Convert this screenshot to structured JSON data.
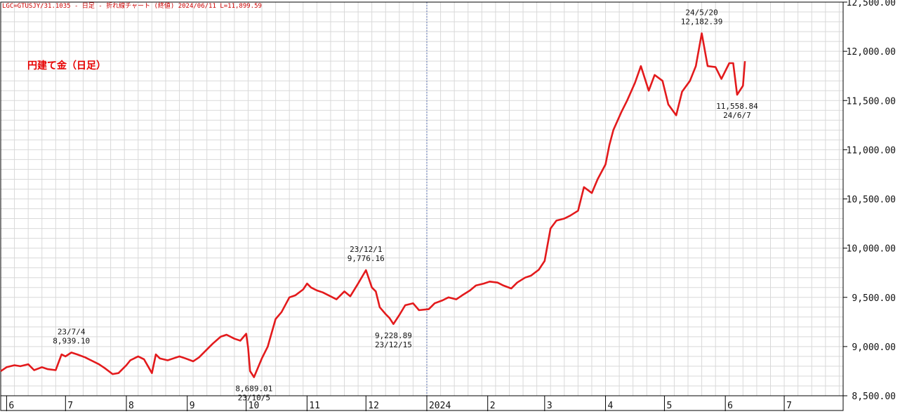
{
  "header": {
    "symbol": "LGC=GTUSJY/31.1035",
    "period": "日足",
    "chart_kind": "折れ線チャート",
    "price_type": "(終値)",
    "date": "2024/06/11",
    "last": "L=11,899.59"
  },
  "legend_label": "円建て金（日足）",
  "colors": {
    "line": "#e31a1c",
    "grid": "#d9d9d9",
    "frame": "#000000",
    "label": "#e60000",
    "text": "#111111"
  },
  "chart_data": {
    "type": "line",
    "title": "",
    "xlabel": "",
    "ylabel": "",
    "ylim": [
      8500,
      12500
    ],
    "y_ticks": [
      "8,500.00",
      "9,000.00",
      "9,500.00",
      "10,000.00",
      "10,500.00",
      "11,000.00",
      "11,500.00",
      "12,000.00",
      "12,500.00"
    ],
    "x_ticks": [
      {
        "label": "6",
        "date": "2023-06-01"
      },
      {
        "label": "7",
        "date": "2023-07-01"
      },
      {
        "label": "8",
        "date": "2023-08-01"
      },
      {
        "label": "9",
        "date": "2023-09-01"
      },
      {
        "label": "10",
        "date": "2023-10-01"
      },
      {
        "label": "11",
        "date": "2023-11-01"
      },
      {
        "label": "12",
        "date": "2023-12-01"
      },
      {
        "label": "2024",
        "date": "2024-01-01"
      },
      {
        "label": "2",
        "date": "2024-02-01"
      },
      {
        "label": "3",
        "date": "2024-03-01"
      },
      {
        "label": "4",
        "date": "2024-04-01"
      },
      {
        "label": "5",
        "date": "2024-05-01"
      },
      {
        "label": "6",
        "date": "2024-06-01"
      },
      {
        "label": "7",
        "date": "2024-07-01"
      }
    ],
    "x_range": [
      "2023-05-29",
      "2024-07-31"
    ],
    "series": [
      {
        "points": [
          [
            "2023-05-29",
            8750
          ],
          [
            "2023-06-01",
            8790
          ],
          [
            "2023-06-05",
            8810
          ],
          [
            "2023-06-08",
            8800
          ],
          [
            "2023-06-12",
            8820
          ],
          [
            "2023-06-15",
            8760
          ],
          [
            "2023-06-19",
            8790
          ],
          [
            "2023-06-22",
            8770
          ],
          [
            "2023-06-26",
            8760
          ],
          [
            "2023-06-29",
            8920
          ],
          [
            "2023-07-01",
            8900
          ],
          [
            "2023-07-04",
            8939.1
          ],
          [
            "2023-07-07",
            8920
          ],
          [
            "2023-07-11",
            8890
          ],
          [
            "2023-07-14",
            8860
          ],
          [
            "2023-07-18",
            8820
          ],
          [
            "2023-07-21",
            8780
          ],
          [
            "2023-07-25",
            8720
          ],
          [
            "2023-07-28",
            8730
          ],
          [
            "2023-08-01",
            8810
          ],
          [
            "2023-08-03",
            8860
          ],
          [
            "2023-08-07",
            8900
          ],
          [
            "2023-08-10",
            8870
          ],
          [
            "2023-08-14",
            8730
          ],
          [
            "2023-08-16",
            8920
          ],
          [
            "2023-08-18",
            8880
          ],
          [
            "2023-08-22",
            8860
          ],
          [
            "2023-08-25",
            8880
          ],
          [
            "2023-08-28",
            8900
          ],
          [
            "2023-08-31",
            8880
          ],
          [
            "2023-09-04",
            8850
          ],
          [
            "2023-09-07",
            8890
          ],
          [
            "2023-09-11",
            8970
          ],
          [
            "2023-09-14",
            9030
          ],
          [
            "2023-09-18",
            9100
          ],
          [
            "2023-09-21",
            9120
          ],
          [
            "2023-09-25",
            9080
          ],
          [
            "2023-09-28",
            9060
          ],
          [
            "2023-10-01",
            9130
          ],
          [
            "2023-10-02",
            8990
          ],
          [
            "2023-10-03",
            8750
          ],
          [
            "2023-10-04",
            8720
          ],
          [
            "2023-10-05",
            8689.01
          ],
          [
            "2023-10-09",
            8880
          ],
          [
            "2023-10-12",
            9000
          ],
          [
            "2023-10-16",
            9280
          ],
          [
            "2023-10-19",
            9350
          ],
          [
            "2023-10-23",
            9500
          ],
          [
            "2023-10-26",
            9520
          ],
          [
            "2023-10-30",
            9580
          ],
          [
            "2023-11-01",
            9640
          ],
          [
            "2023-11-03",
            9600
          ],
          [
            "2023-11-06",
            9570
          ],
          [
            "2023-11-09",
            9550
          ],
          [
            "2023-11-13",
            9510
          ],
          [
            "2023-11-16",
            9480
          ],
          [
            "2023-11-20",
            9560
          ],
          [
            "2023-11-23",
            9510
          ],
          [
            "2023-11-27",
            9640
          ],
          [
            "2023-12-01",
            9776.16
          ],
          [
            "2023-12-04",
            9600
          ],
          [
            "2023-12-06",
            9560
          ],
          [
            "2023-12-08",
            9400
          ],
          [
            "2023-12-11",
            9330
          ],
          [
            "2023-12-13",
            9290
          ],
          [
            "2023-12-15",
            9228.89
          ],
          [
            "2023-12-18",
            9320
          ],
          [
            "2023-12-21",
            9420
          ],
          [
            "2023-12-25",
            9440
          ],
          [
            "2023-12-28",
            9370
          ],
          [
            "2024-01-02",
            9380
          ],
          [
            "2024-01-05",
            9440
          ],
          [
            "2024-01-09",
            9470
          ],
          [
            "2024-01-12",
            9500
          ],
          [
            "2024-01-16",
            9480
          ],
          [
            "2024-01-19",
            9520
          ],
          [
            "2024-01-23",
            9570
          ],
          [
            "2024-01-26",
            9620
          ],
          [
            "2024-01-30",
            9640
          ],
          [
            "2024-02-02",
            9660
          ],
          [
            "2024-02-06",
            9650
          ],
          [
            "2024-02-09",
            9620
          ],
          [
            "2024-02-13",
            9590
          ],
          [
            "2024-02-16",
            9650
          ],
          [
            "2024-02-20",
            9700
          ],
          [
            "2024-02-23",
            9720
          ],
          [
            "2024-02-27",
            9780
          ],
          [
            "2024-03-01",
            9870
          ],
          [
            "2024-03-04",
            10200
          ],
          [
            "2024-03-07",
            10280
          ],
          [
            "2024-03-11",
            10300
          ],
          [
            "2024-03-14",
            10330
          ],
          [
            "2024-03-18",
            10380
          ],
          [
            "2024-03-21",
            10620
          ],
          [
            "2024-03-25",
            10560
          ],
          [
            "2024-03-28",
            10700
          ],
          [
            "2024-04-01",
            10850
          ],
          [
            "2024-04-03",
            11050
          ],
          [
            "2024-04-05",
            11200
          ],
          [
            "2024-04-09",
            11380
          ],
          [
            "2024-04-12",
            11500
          ],
          [
            "2024-04-16",
            11680
          ],
          [
            "2024-04-19",
            11850
          ],
          [
            "2024-04-23",
            11600
          ],
          [
            "2024-04-26",
            11760
          ],
          [
            "2024-04-30",
            11700
          ],
          [
            "2024-05-03",
            11460
          ],
          [
            "2024-05-07",
            11350
          ],
          [
            "2024-05-10",
            11590
          ],
          [
            "2024-05-14",
            11700
          ],
          [
            "2024-05-17",
            11850
          ],
          [
            "2024-05-20",
            12182.39
          ],
          [
            "2024-05-23",
            11850
          ],
          [
            "2024-05-27",
            11840
          ],
          [
            "2024-05-30",
            11720
          ],
          [
            "2024-06-03",
            11880
          ],
          [
            "2024-06-05",
            11880
          ],
          [
            "2024-06-07",
            11558.84
          ],
          [
            "2024-06-10",
            11650
          ],
          [
            "2024-06-11",
            11899.59
          ]
        ]
      }
    ],
    "annotations": [
      {
        "date_label": "23/7/4",
        "value_label": "8,939.10",
        "x": "2023-07-04",
        "y": 8939.1,
        "position": "above"
      },
      {
        "date_label": "23/10/5",
        "value_label": "8,689.01",
        "x": "2023-10-05",
        "y": 8689.01,
        "position": "below"
      },
      {
        "date_label": "23/12/1",
        "value_label": "9,776.16",
        "x": "2023-12-01",
        "y": 9776.16,
        "position": "above"
      },
      {
        "date_label": "23/12/15",
        "value_label": "9,228.89",
        "x": "2023-12-15",
        "y": 9228.89,
        "position": "below"
      },
      {
        "date_label": "24/5/20",
        "value_label": "12,182.39",
        "x": "2024-05-20",
        "y": 12182.39,
        "position": "above"
      },
      {
        "date_label": "24/6/7",
        "value_label": "11,558.84",
        "x": "2024-06-07",
        "y": 11558.84,
        "position": "below"
      }
    ]
  }
}
